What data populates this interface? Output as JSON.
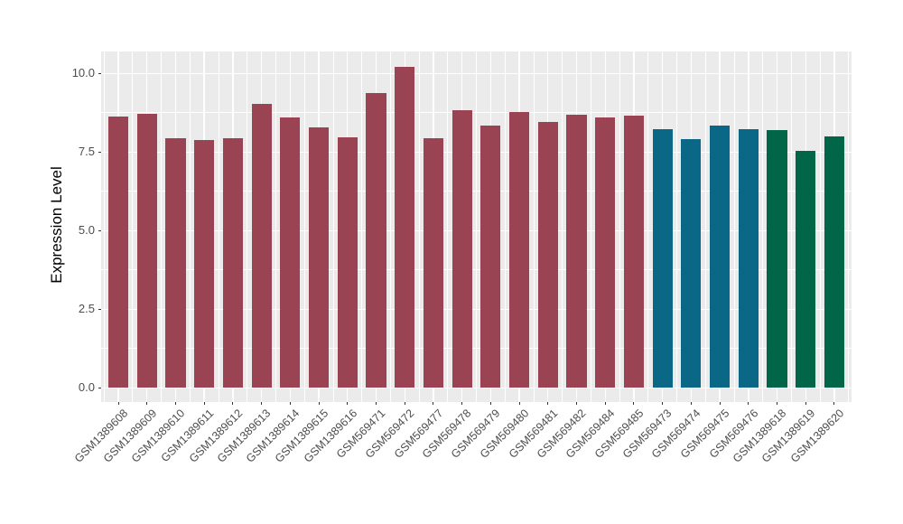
{
  "chart_data": {
    "type": "bar",
    "title": "",
    "xlabel": "",
    "ylabel": "Expression Level",
    "legend": "none",
    "grid": "white major and minor gridlines on grey panel",
    "categories": [
      "GSM1389608",
      "GSM1389609",
      "GSM1389610",
      "GSM1389611",
      "GSM1389612",
      "GSM1389613",
      "GSM1389614",
      "GSM1389615",
      "GSM1389616",
      "GSM569471",
      "GSM569472",
      "GSM569477",
      "GSM569478",
      "GSM569479",
      "GSM569480",
      "GSM569481",
      "GSM569482",
      "GSM569484",
      "GSM569485",
      "GSM569473",
      "GSM569474",
      "GSM569475",
      "GSM569476",
      "GSM1389618",
      "GSM1389619",
      "GSM1389620"
    ],
    "values": [
      8.64,
      8.73,
      7.93,
      7.89,
      7.95,
      9.04,
      8.59,
      8.29,
      7.98,
      9.38,
      10.22,
      7.95,
      8.82,
      8.35,
      8.78,
      8.46,
      8.68,
      8.6,
      8.66,
      8.22,
      7.9,
      8.35,
      8.22,
      8.21,
      7.55,
      8.01
    ],
    "bar_color_keys": [
      "maroon",
      "maroon",
      "maroon",
      "maroon",
      "maroon",
      "maroon",
      "maroon",
      "maroon",
      "maroon",
      "maroon",
      "maroon",
      "maroon",
      "maroon",
      "maroon",
      "maroon",
      "maroon",
      "maroon",
      "maroon",
      "maroon",
      "teal",
      "teal",
      "teal",
      "teal",
      "green",
      "green",
      "green"
    ],
    "palette": {
      "maroon": "#9A4352",
      "teal": "#0B6786",
      "green": "#016647"
    },
    "yticks": {
      "values": [
        0,
        2.5,
        5,
        7.5,
        10
      ],
      "labels": [
        "0.0",
        "2.5",
        "5.0",
        "7.5",
        "10.0"
      ]
    },
    "yticks_minor": [
      1.25,
      3.75,
      6.25,
      8.75
    ],
    "ylim": [
      -0.45,
      10.7
    ],
    "xlim": [
      0.4,
      26.6
    ],
    "bar_width_frac": 0.7,
    "colors": {
      "page_bg": "#FFFFFF",
      "panel_bg": "#EBEBEB",
      "grid": "#FFFFFF",
      "axis_text": "#4D4D4D",
      "axis_title": "#000000",
      "tick_mark": "#333333"
    }
  }
}
